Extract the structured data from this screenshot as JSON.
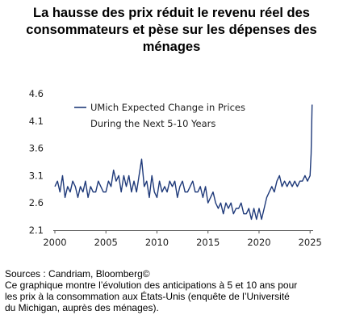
{
  "header": {
    "title_lines": [
      "La hausse des prix réduit le revenu réel des",
      "consommateurs et pèse sur les dépenses des",
      "ménages"
    ]
  },
  "footer": {
    "sources": "Sources : Candriam, Bloomberg©",
    "note_lines": [
      "Ce graphique montre l’évolution des anticipations à 5 et 10 ans pour",
      "les prix à la consommation aux États-Unis (enquête de l’Université",
      "du Michigan, auprès des ménages)."
    ]
  },
  "colors": {
    "series": "#1f3a7a",
    "axis": "#555555",
    "text": "#222222"
  },
  "chart_data": {
    "type": "line",
    "title": "",
    "xlabel": "",
    "ylabel": "",
    "xlim": [
      2000,
      2025.3
    ],
    "ylim": [
      2.1,
      4.6
    ],
    "x_ticks": [
      2000,
      2005,
      2010,
      2015,
      2020,
      2025
    ],
    "y_ticks": [
      2.1,
      2.6,
      3.1,
      3.6,
      4.1,
      4.6
    ],
    "x_tick_labels": [
      "2000",
      "2005",
      "2010",
      "2015",
      "2020",
      "2025"
    ],
    "y_tick_labels": [
      "2.1",
      "2.6",
      "3.1",
      "3.6",
      "4.1",
      "4.6"
    ],
    "grid": false,
    "legend_position": "top-left",
    "legend_lines": [
      "UMich Expected Change in Prices",
      "During the Next 5-10 Years"
    ],
    "series": [
      {
        "name": "UMich Expected Change in Prices During the Next 5-10 Years",
        "x": [
          2000.0,
          2000.25,
          2000.5,
          2000.75,
          2001.0,
          2001.25,
          2001.5,
          2001.75,
          2002.0,
          2002.25,
          2002.5,
          2002.75,
          2003.0,
          2003.25,
          2003.5,
          2003.75,
          2004.0,
          2004.25,
          2004.5,
          2004.75,
          2005.0,
          2005.25,
          2005.5,
          2005.75,
          2006.0,
          2006.25,
          2006.5,
          2006.75,
          2007.0,
          2007.25,
          2007.5,
          2007.75,
          2008.0,
          2008.25,
          2008.5,
          2008.75,
          2009.0,
          2009.25,
          2009.5,
          2009.75,
          2010.0,
          2010.25,
          2010.5,
          2010.75,
          2011.0,
          2011.25,
          2011.5,
          2011.75,
          2012.0,
          2012.25,
          2012.5,
          2012.75,
          2013.0,
          2013.25,
          2013.5,
          2013.75,
          2014.0,
          2014.25,
          2014.5,
          2014.75,
          2015.0,
          2015.25,
          2015.5,
          2015.75,
          2016.0,
          2016.25,
          2016.5,
          2016.75,
          2017.0,
          2017.25,
          2017.5,
          2017.75,
          2018.0,
          2018.25,
          2018.5,
          2018.75,
          2019.0,
          2019.25,
          2019.5,
          2019.75,
          2020.0,
          2020.25,
          2020.5,
          2020.75,
          2021.0,
          2021.25,
          2021.5,
          2021.75,
          2022.0,
          2022.25,
          2022.5,
          2022.75,
          2023.0,
          2023.25,
          2023.5,
          2023.75,
          2024.0,
          2024.25,
          2024.5,
          2024.75,
          2025.0,
          2025.1,
          2025.2
        ],
        "values": [
          2.9,
          3.0,
          2.8,
          3.1,
          2.7,
          2.9,
          2.8,
          3.0,
          2.9,
          2.7,
          2.9,
          2.8,
          3.0,
          2.7,
          2.9,
          2.8,
          2.8,
          3.0,
          2.9,
          2.8,
          2.8,
          3.0,
          2.9,
          3.2,
          3.0,
          3.1,
          2.8,
          3.1,
          2.9,
          3.1,
          2.8,
          3.0,
          2.8,
          3.1,
          3.4,
          2.9,
          3.0,
          2.7,
          3.1,
          2.8,
          2.7,
          3.0,
          2.8,
          2.9,
          2.8,
          3.0,
          2.9,
          3.0,
          2.7,
          2.9,
          3.0,
          2.8,
          2.8,
          2.9,
          3.0,
          2.8,
          2.8,
          2.9,
          2.7,
          2.9,
          2.6,
          2.7,
          2.8,
          2.6,
          2.5,
          2.6,
          2.4,
          2.6,
          2.5,
          2.6,
          2.4,
          2.5,
          2.5,
          2.6,
          2.4,
          2.4,
          2.5,
          2.3,
          2.5,
          2.3,
          2.5,
          2.3,
          2.5,
          2.7,
          2.8,
          2.9,
          2.8,
          3.0,
          3.1,
          2.9,
          3.0,
          2.9,
          3.0,
          2.9,
          3.0,
          2.9,
          3.0,
          3.0,
          3.1,
          3.0,
          3.1,
          3.5,
          4.4
        ]
      }
    ]
  }
}
